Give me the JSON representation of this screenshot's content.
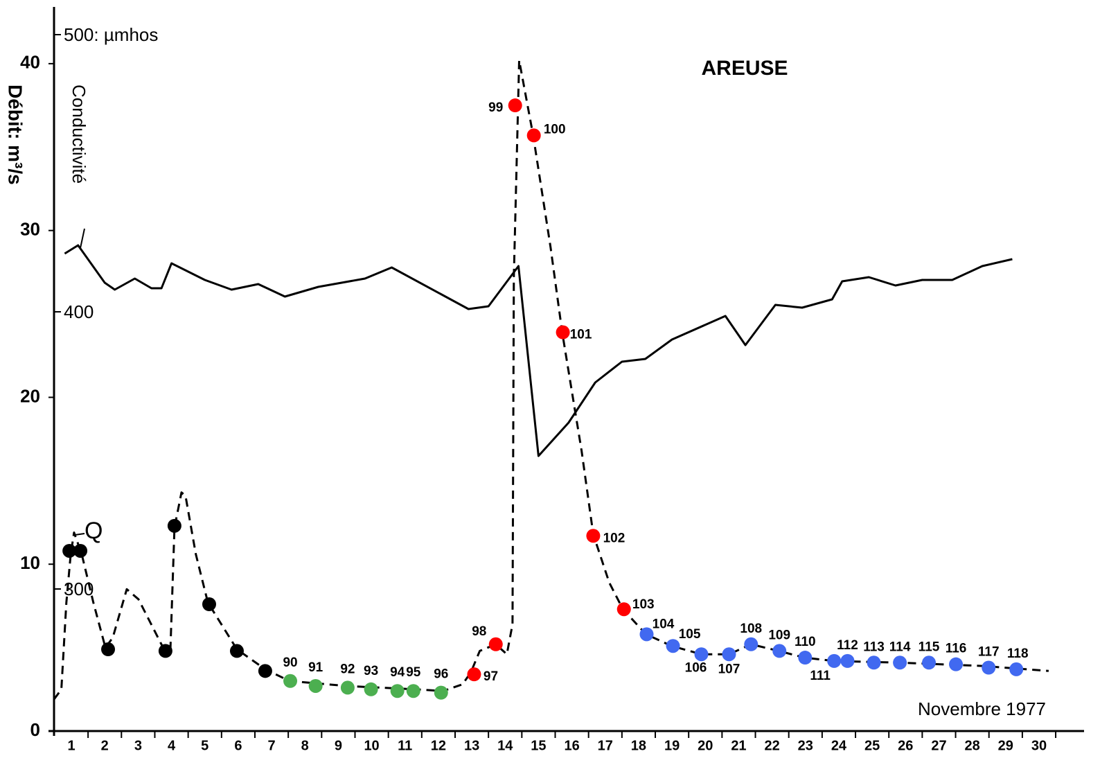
{
  "chart_data": {
    "type": "line",
    "title": "AREUSE",
    "x_label": "Novembre 1977",
    "y_label": "Débit: m³/s",
    "xlim": [
      0.48,
      31.35
    ],
    "xticks": [
      1,
      2,
      3,
      4,
      5,
      6,
      7,
      8,
      9,
      10,
      11,
      12,
      13,
      14,
      15,
      16,
      17,
      18,
      19,
      20,
      21,
      22,
      23,
      24,
      25,
      26,
      27,
      28,
      29,
      30
    ],
    "ylim": [
      0,
      43.4
    ],
    "yticks": [
      0,
      10,
      20,
      30,
      40
    ],
    "y2lim": [
      248.75,
      510
    ],
    "y2ticks": [
      {
        "value": 500,
        "label": "500: µmhos"
      },
      400,
      300
    ],
    "series": [
      {
        "name": "Conductivité",
        "axis": "y2",
        "color": "#000000",
        "dashed": false,
        "x": [
          0.8,
          1.2,
          2.0,
          2.3,
          2.9,
          3.4,
          3.7,
          4.0,
          5.0,
          5.8,
          6.6,
          7.4,
          8.4,
          9.8,
          10.6,
          12.9,
          13.5,
          14.4,
          15.0,
          15.9,
          16.7,
          17.5,
          18.2,
          19.0,
          20.6,
          21.2,
          22.1,
          22.9,
          23.8,
          24.1,
          24.9,
          25.7,
          26.5,
          27.4,
          28.3,
          29.2
        ],
        "values": [
          421,
          424,
          410.5,
          408,
          412,
          408.5,
          408.5,
          417.5,
          411.5,
          408,
          410,
          405.5,
          409,
          412,
          416,
          401,
          402,
          416.5,
          348,
          360,
          374.5,
          382,
          383,
          390,
          398.5,
          388,
          402.5,
          401.5,
          404.5,
          411,
          412.5,
          409.5,
          411.5,
          411.5,
          416.5,
          419
        ]
      },
      {
        "name": "Q",
        "color": "#000000",
        "dashed": true,
        "x": [
          0.48,
          0.7,
          0.85,
          0.98,
          1.08,
          1.31,
          1.66,
          2.02,
          2.24,
          2.66,
          3.01,
          3.8,
          3.97,
          4.09,
          4.3,
          4.42,
          4.73,
          5.09,
          5.96,
          6.81,
          7.54,
          9.24,
          11.31,
          12.14,
          12.72,
          12.97,
          13.24,
          13.72,
          14.05,
          14.22,
          14.26,
          14.42,
          14.84,
          15.36,
          15.71,
          16.29,
          16.64,
          17.12,
          17.53,
          18.22,
          18.99,
          19.88,
          20.71,
          21.37,
          22.2,
          22.97,
          23.86,
          25.83,
          28.32,
          30.29
        ],
        "values": [
          1.9,
          2.5,
          7.7,
          10.6,
          11.9,
          10.6,
          7.7,
          5.0,
          5.6,
          8.5,
          7.9,
          4.8,
          5.0,
          12.2,
          14.3,
          14.1,
          10.6,
          7.7,
          4.9,
          3.7,
          3.0,
          2.7,
          2.5,
          2.4,
          2.8,
          3.5,
          4.8,
          5.2,
          4.6,
          6.4,
          27.2,
          40.2,
          35.7,
          29.0,
          23.9,
          16.8,
          11.8,
          8.9,
          7.3,
          5.8,
          5.1,
          4.6,
          4.6,
          5.2,
          4.8,
          4.4,
          4.2,
          4.1,
          3.9,
          3.6
        ]
      }
    ],
    "markers": [
      {
        "color": "#000000",
        "x": [
          0.94,
          1.27,
          2.1,
          3.82,
          4.09,
          5.13,
          5.96,
          6.81
        ],
        "values": [
          10.8,
          10.8,
          4.9,
          4.8,
          12.3,
          7.6,
          4.8,
          3.6
        ]
      },
      {
        "color": "#4caf50",
        "x": [
          7.56,
          8.32,
          9.28,
          9.98,
          10.77,
          11.25,
          12.08
        ],
        "values": [
          3.0,
          2.7,
          2.6,
          2.5,
          2.4,
          2.4,
          2.3
        ],
        "labels": [
          "90",
          "91",
          "92",
          "93",
          "94",
          "95",
          "96"
        ]
      },
      {
        "color": "#ff0000",
        "x": [
          13.07,
          13.72,
          14.3,
          14.86,
          15.73,
          16.64,
          17.56
        ],
        "values": [
          3.4,
          5.2,
          37.5,
          35.7,
          23.9,
          11.7,
          7.3
        ],
        "labels": [
          "97",
          "98",
          "99",
          "100",
          "101",
          "102",
          "103"
        ]
      },
      {
        "color": "#4169f0",
        "x": [
          18.24,
          19.03,
          19.88,
          20.71,
          21.37,
          22.22,
          22.99,
          23.86,
          24.26,
          25.05,
          25.83,
          26.7,
          27.51,
          28.49,
          29.32
        ],
        "values": [
          5.8,
          5.1,
          4.6,
          4.6,
          5.2,
          4.8,
          4.4,
          4.2,
          4.2,
          4.1,
          4.1,
          4.1,
          4.0,
          3.8,
          3.7
        ],
        "labels": [
          "104",
          "105",
          "106",
          "107",
          "108",
          "109",
          "110",
          "111",
          "112",
          "113",
          "114",
          "115",
          "116",
          "117",
          "118"
        ]
      }
    ]
  }
}
